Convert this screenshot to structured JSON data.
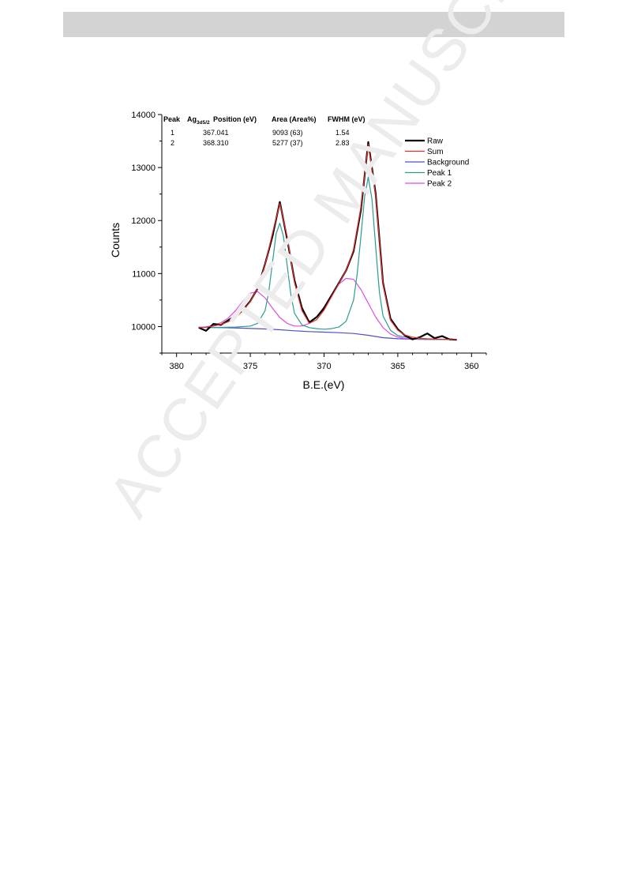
{
  "watermark": "ACCEPTED MANUSCRIPT",
  "chart_data": {
    "type": "line",
    "title": "",
    "xlabel": "B.E.(eV)",
    "ylabel": "Counts",
    "xlim": [
      381,
      359
    ],
    "ylim": [
      9500,
      14000
    ],
    "x_reversed": true,
    "xticks": [
      380,
      375,
      370,
      365,
      360
    ],
    "yticks": [
      10000,
      11000,
      12000,
      13000,
      14000
    ],
    "grid": false,
    "legend_position": "top-right",
    "table": {
      "headers": [
        "Peak",
        "Ag",
        "3d5/2",
        "Position (eV)",
        "Area (Area%)",
        "FWHM (eV)"
      ],
      "rows": [
        [
          "1",
          "367.041",
          "9093 (63)",
          "1.54"
        ],
        [
          "2",
          "368.310",
          "5277 (37)",
          "2.83"
        ]
      ]
    },
    "series": [
      {
        "name": "Raw",
        "color": "#000000",
        "x": [
          378.5,
          378.0,
          377.5,
          377.0,
          376.5,
          376.0,
          375.5,
          375.0,
          374.5,
          374.0,
          373.5,
          373.0,
          372.5,
          372.0,
          371.5,
          371.0,
          370.5,
          370.0,
          369.5,
          369.0,
          368.5,
          368.0,
          367.5,
          367.0,
          366.5,
          366.0,
          365.5,
          365.0,
          364.5,
          364.0,
          363.5,
          363.0,
          362.5,
          362.0,
          361.5,
          361.0
        ],
        "y": [
          9980,
          9920,
          10050,
          10030,
          10120,
          10200,
          10310,
          10480,
          10720,
          11180,
          11700,
          12350,
          11650,
          10870,
          10350,
          10080,
          10180,
          10350,
          10580,
          10820,
          11060,
          11420,
          12200,
          13480,
          12500,
          10820,
          10150,
          9950,
          9830,
          9760,
          9800,
          9870,
          9780,
          9820,
          9760,
          9750
        ]
      },
      {
        "name": "Sum",
        "color": "#e03030",
        "x": [
          378.5,
          378.0,
          377.5,
          377.0,
          376.5,
          376.0,
          375.5,
          375.0,
          374.5,
          374.0,
          373.5,
          373.0,
          372.5,
          372.0,
          371.5,
          371.0,
          370.5,
          370.0,
          369.5,
          369.0,
          368.5,
          368.0,
          367.5,
          367.0,
          366.5,
          366.0,
          365.5,
          365.0,
          364.5,
          364.0,
          363.5,
          363.0,
          362.5,
          362.0,
          361.5,
          361.0
        ],
        "y": [
          9980,
          9990,
          10010,
          10040,
          10090,
          10170,
          10300,
          10470,
          10730,
          11160,
          11760,
          12320,
          11700,
          10830,
          10300,
          10060,
          10130,
          10310,
          10560,
          10810,
          11060,
          11450,
          12250,
          13440,
          12450,
          10790,
          10120,
          9930,
          9840,
          9800,
          9780,
          9770,
          9765,
          9760,
          9758,
          9756
        ]
      },
      {
        "name": "Background",
        "color": "#5050c8",
        "x": [
          378.5,
          377.0,
          375.5,
          374.0,
          373.0,
          372.0,
          371.0,
          370.0,
          369.0,
          368.0,
          367.0,
          366.0,
          365.0,
          364.0,
          363.0,
          362.0,
          361.0
        ],
        "y": [
          9985,
          9980,
          9970,
          9955,
          9940,
          9920,
          9905,
          9895,
          9885,
          9870,
          9835,
          9790,
          9770,
          9762,
          9758,
          9756,
          9755
        ]
      },
      {
        "name": "Peak 1",
        "color": "#2a9d8f",
        "x": [
          378.5,
          377.0,
          376.0,
          375.0,
          374.5,
          374.0,
          373.75,
          373.5,
          373.25,
          373.0,
          372.75,
          372.5,
          372.25,
          372.0,
          371.5,
          371.0,
          370.5,
          370.0,
          369.5,
          369.0,
          368.5,
          368.0,
          367.75,
          367.5,
          367.25,
          367.0,
          366.75,
          366.5,
          366.25,
          366.0,
          365.5,
          365.0,
          364.0,
          363.0,
          362.0,
          361.0
        ],
        "y": [
          9985,
          9985,
          9990,
          10010,
          10060,
          10300,
          10650,
          11200,
          11750,
          11950,
          11700,
          11150,
          10600,
          10250,
          10030,
          9980,
          9960,
          9950,
          9960,
          9990,
          10100,
          10500,
          11000,
          11700,
          12450,
          12820,
          12400,
          11500,
          10650,
          10200,
          9930,
          9830,
          9775,
          9760,
          9756,
          9755
        ]
      },
      {
        "name": "Peak 2",
        "color": "#e04ce0",
        "x": [
          378.5,
          378.0,
          377.5,
          377.0,
          376.5,
          376.0,
          375.5,
          375.0,
          374.5,
          374.0,
          373.5,
          373.0,
          372.5,
          372.0,
          371.5,
          371.0,
          370.5,
          370.0,
          369.5,
          369.0,
          368.5,
          368.0,
          367.5,
          367.0,
          366.5,
          366.0,
          365.5,
          365.0,
          364.5,
          364.0,
          363.5,
          363.0,
          362.5,
          362.0,
          361.5,
          361.0
        ],
        "y": [
          9985,
          9995,
          10020,
          10070,
          10160,
          10300,
          10480,
          10630,
          10660,
          10540,
          10350,
          10170,
          10060,
          10010,
          10010,
          10060,
          10180,
          10370,
          10600,
          10800,
          10910,
          10890,
          10700,
          10440,
          10180,
          9980,
          9860,
          9800,
          9775,
          9765,
          9760,
          9757,
          9756,
          9755,
          9755,
          9755
        ]
      }
    ]
  }
}
